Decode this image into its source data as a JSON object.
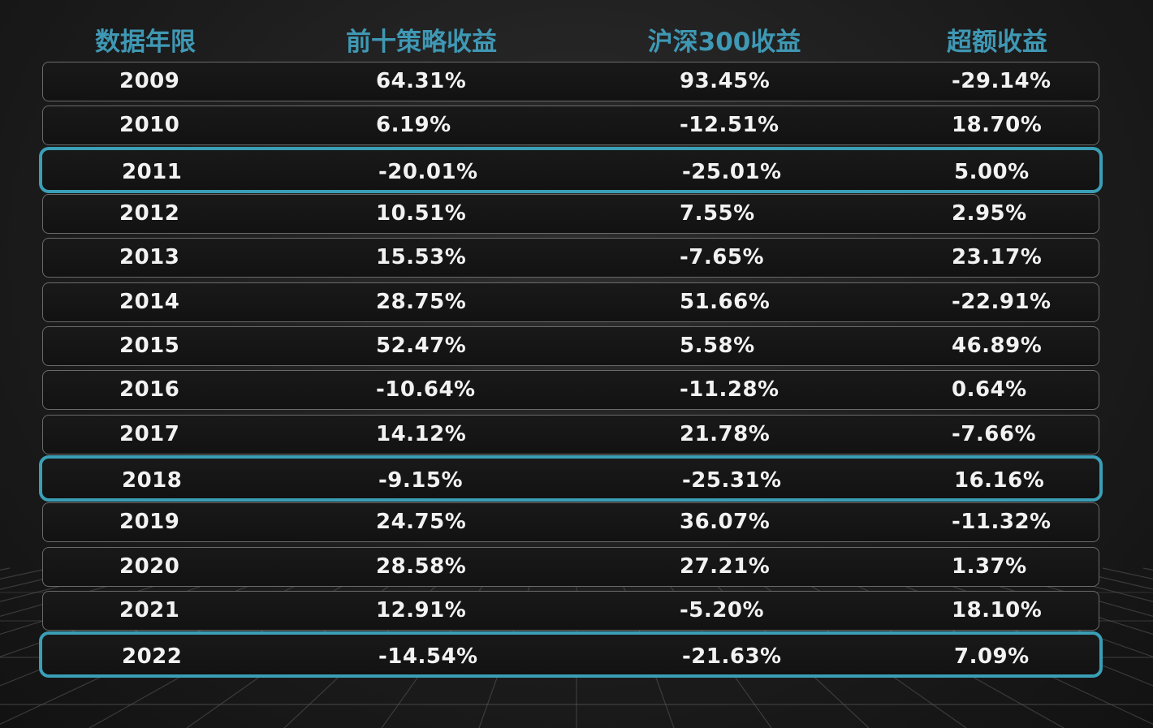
{
  "chart_data": {
    "type": "table",
    "columns": [
      "数据年限",
      "前十策略收益",
      "沪深300收益",
      "超额收益"
    ],
    "rows": [
      {
        "year": "2009",
        "strategy": "64.31%",
        "csi300": "93.45%",
        "excess": "-29.14%",
        "highlight": false
      },
      {
        "year": "2010",
        "strategy": "6.19%",
        "csi300": "-12.51%",
        "excess": "18.70%",
        "highlight": false
      },
      {
        "year": "2011",
        "strategy": "-20.01%",
        "csi300": "-25.01%",
        "excess": "5.00%",
        "highlight": true
      },
      {
        "year": "2012",
        "strategy": "10.51%",
        "csi300": "7.55%",
        "excess": "2.95%",
        "highlight": false
      },
      {
        "year": "2013",
        "strategy": "15.53%",
        "csi300": "-7.65%",
        "excess": "23.17%",
        "highlight": false
      },
      {
        "year": "2014",
        "strategy": "28.75%",
        "csi300": "51.66%",
        "excess": "-22.91%",
        "highlight": false
      },
      {
        "year": "2015",
        "strategy": "52.47%",
        "csi300": "5.58%",
        "excess": "46.89%",
        "highlight": false
      },
      {
        "year": "2016",
        "strategy": "-10.64%",
        "csi300": "-11.28%",
        "excess": "0.64%",
        "highlight": false
      },
      {
        "year": "2017",
        "strategy": "14.12%",
        "csi300": "21.78%",
        "excess": "-7.66%",
        "highlight": false
      },
      {
        "year": "2018",
        "strategy": "-9.15%",
        "csi300": "-25.31%",
        "excess": "16.16%",
        "highlight": true
      },
      {
        "year": "2019",
        "strategy": "24.75%",
        "csi300": "36.07%",
        "excess": "-11.32%",
        "highlight": false
      },
      {
        "year": "2020",
        "strategy": "28.58%",
        "csi300": "27.21%",
        "excess": "1.37%",
        "highlight": false
      },
      {
        "year": "2021",
        "strategy": "12.91%",
        "csi300": "-5.20%",
        "excess": "18.10%",
        "highlight": false
      },
      {
        "year": "2022",
        "strategy": "-14.54%",
        "csi300": "-21.63%",
        "excess": "7.09%",
        "highlight": true
      }
    ]
  },
  "colors": {
    "header_text": "#3f98b4",
    "highlight_border": "#3a9fb6",
    "cell_text": "#f2f2f2",
    "row_border": "#6a6a6a",
    "grid_line": "#5a5a5a"
  }
}
